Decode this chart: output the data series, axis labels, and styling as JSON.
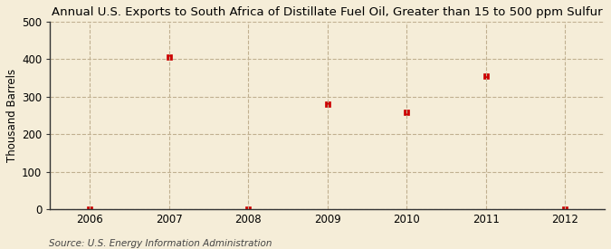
{
  "title": "Annual U.S. Exports to South Africa of Distillate Fuel Oil, Greater than 15 to 500 ppm Sulfur",
  "ylabel": "Thousand Barrels",
  "source": "Source: U.S. Energy Information Administration",
  "x_values": [
    2006,
    2007,
    2008,
    2009,
    2010,
    2011,
    2012
  ],
  "y_values": [
    0,
    405,
    0,
    280,
    258,
    355,
    0
  ],
  "xlim": [
    2005.5,
    2012.5
  ],
  "ylim": [
    0,
    500
  ],
  "yticks": [
    0,
    100,
    200,
    300,
    400,
    500
  ],
  "xticks": [
    2006,
    2007,
    2008,
    2009,
    2010,
    2011,
    2012
  ],
  "marker_color": "#cc0000",
  "marker": "s",
  "marker_size": 4,
  "background_color": "#f5edd8",
  "grid_color": "#c0b090",
  "title_fontsize": 9.5,
  "label_fontsize": 8.5,
  "tick_fontsize": 8.5,
  "source_fontsize": 7.5
}
